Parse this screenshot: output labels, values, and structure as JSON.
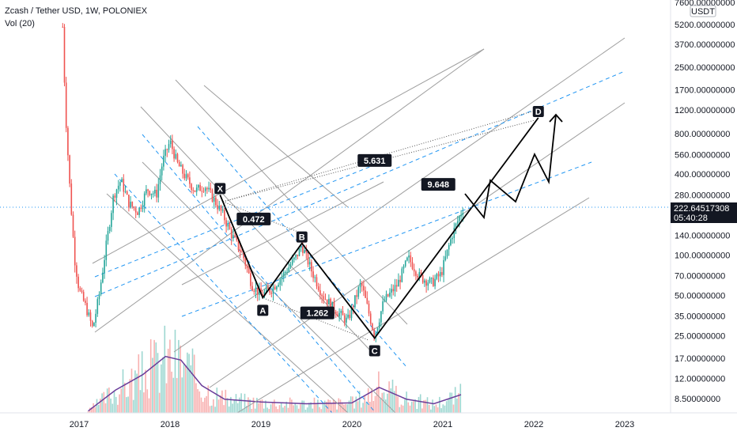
{
  "header": {
    "title": "Zcash / Tether USD, 1W, POLONIEX",
    "volume_label": "Vol (20)"
  },
  "currency_badge": "USDT",
  "price_tag": {
    "value": "222.64517308",
    "countdown": "05:40:28",
    "color": "#131722"
  },
  "colors": {
    "up": "#26a69a",
    "down": "#ef5350",
    "pitchfork": "#9e9e9e",
    "dashed": "#2196f3",
    "pattern": "#000000",
    "volume_ma": "#6a3d9a"
  },
  "chart_data": {
    "type": "candlestick",
    "y_scale": "log",
    "y_ticks": [
      "7600.00000000",
      "5200.00000000",
      "3700.00000000",
      "2500.00000000",
      "1700.00000000",
      "1200.00000000",
      "800.00000000",
      "560.00000000",
      "400.00000000",
      "280.00000000",
      "140.00000000",
      "100.00000000",
      "70.00000000",
      "50.00000000",
      "35.00000000",
      "25.00000000",
      "17.00000000",
      "12.00000000",
      "8.50000000"
    ],
    "x_ticks": [
      "2017",
      "2018",
      "2019",
      "2020",
      "2021",
      "2022",
      "2023"
    ],
    "harmonic_points": [
      {
        "label": "X",
        "date": "2018.55",
        "price": 280
      },
      {
        "label": "A",
        "date": "2019.02",
        "price": 48
      },
      {
        "label": "B",
        "date": "2019.45",
        "price": 122
      },
      {
        "label": "C",
        "date": "2020.25",
        "price": 24
      },
      {
        "label": "D",
        "date": "2022.05",
        "price": 1050
      }
    ],
    "ratios": [
      {
        "label": "0.472",
        "date": "2018.92",
        "price": 185
      },
      {
        "label": "1.262",
        "date": "2019.62",
        "price": 37
      },
      {
        "label": "5.631",
        "date": "2020.25",
        "price": 505
      },
      {
        "label": "9.648",
        "date": "2020.95",
        "price": 335
      }
    ],
    "price_series": [
      {
        "date": "2016.82",
        "price": 5000
      },
      {
        "date": "2016.85",
        "price": 1200
      },
      {
        "date": "2016.9",
        "price": 300
      },
      {
        "date": "2016.95",
        "price": 95
      },
      {
        "date": "2017.0",
        "price": 55
      },
      {
        "date": "2017.08",
        "price": 40
      },
      {
        "date": "2017.15",
        "price": 28
      },
      {
        "date": "2017.22",
        "price": 50
      },
      {
        "date": "2017.3",
        "price": 120
      },
      {
        "date": "2017.38",
        "price": 280
      },
      {
        "date": "2017.46",
        "price": 360
      },
      {
        "date": "2017.55",
        "price": 240
      },
      {
        "date": "2017.65",
        "price": 210
      },
      {
        "date": "2017.75",
        "price": 310
      },
      {
        "date": "2017.85",
        "price": 280
      },
      {
        "date": "2017.92",
        "price": 500
      },
      {
        "date": "2018.0",
        "price": 700
      },
      {
        "date": "2018.08",
        "price": 480
      },
      {
        "date": "2018.18",
        "price": 370
      },
      {
        "date": "2018.28",
        "price": 300
      },
      {
        "date": "2018.38",
        "price": 330
      },
      {
        "date": "2018.48",
        "price": 260
      },
      {
        "date": "2018.58",
        "price": 200
      },
      {
        "date": "2018.68",
        "price": 140
      },
      {
        "date": "2018.8",
        "price": 100
      },
      {
        "date": "2018.9",
        "price": 60
      },
      {
        "date": "2019.0",
        "price": 50
      },
      {
        "date": "2019.12",
        "price": 56
      },
      {
        "date": "2019.25",
        "price": 72
      },
      {
        "date": "2019.38",
        "price": 95
      },
      {
        "date": "2019.45",
        "price": 118
      },
      {
        "date": "2019.55",
        "price": 78
      },
      {
        "date": "2019.68",
        "price": 50
      },
      {
        "date": "2019.8",
        "price": 40
      },
      {
        "date": "2019.95",
        "price": 32
      },
      {
        "date": "2020.1",
        "price": 62
      },
      {
        "date": "2020.2",
        "price": 34
      },
      {
        "date": "2020.25",
        "price": 25
      },
      {
        "date": "2020.35",
        "price": 45
      },
      {
        "date": "2020.5",
        "price": 60
      },
      {
        "date": "2020.62",
        "price": 95
      },
      {
        "date": "2020.75",
        "price": 68
      },
      {
        "date": "2020.88",
        "price": 62
      },
      {
        "date": "2020.98",
        "price": 72
      },
      {
        "date": "2021.1",
        "price": 140
      },
      {
        "date": "2021.22",
        "price": 222
      }
    ],
    "volume_ma": [
      {
        "date": "2017.1",
        "value": 0.02
      },
      {
        "date": "2017.4",
        "value": 0.25
      },
      {
        "date": "2017.7",
        "value": 0.42
      },
      {
        "date": "2017.95",
        "value": 0.62
      },
      {
        "date": "2018.12",
        "value": 0.58
      },
      {
        "date": "2018.35",
        "value": 0.3
      },
      {
        "date": "2018.6",
        "value": 0.15
      },
      {
        "date": "2019.0",
        "value": 0.12
      },
      {
        "date": "2019.5",
        "value": 0.1
      },
      {
        "date": "2020.0",
        "value": 0.11
      },
      {
        "date": "2020.3",
        "value": 0.28
      },
      {
        "date": "2020.6",
        "value": 0.15
      },
      {
        "date": "2020.9",
        "value": 0.1
      },
      {
        "date": "2021.2",
        "value": 0.2
      }
    ]
  }
}
